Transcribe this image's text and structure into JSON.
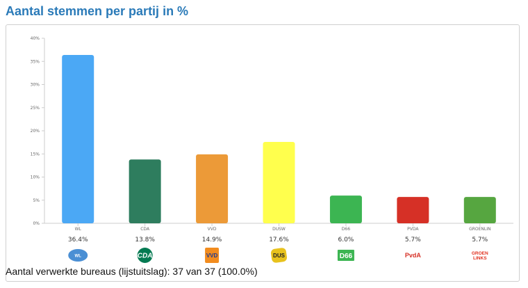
{
  "header": {
    "title": "Aantal stemmen per partij in %"
  },
  "footer": {
    "text": "Aantal verwerkte bureaus (lijstuitslag): 37 van 37 (100.0%)"
  },
  "chart_data": {
    "type": "bar",
    "title": "",
    "xlabel": "",
    "ylabel": "",
    "ylim": [
      0,
      40
    ],
    "yticks": [
      "0%",
      "5%",
      "10%",
      "15%",
      "20%",
      "25%",
      "30%",
      "35%",
      "40%"
    ],
    "grid": false,
    "categories": [
      "WL",
      "CDA",
      "VVD",
      "DUSW",
      "D66",
      "PVDA",
      "GROENLIN"
    ],
    "values": [
      36.4,
      13.8,
      14.9,
      17.6,
      6.0,
      5.7,
      5.7
    ],
    "value_labels": [
      "36.4%",
      "13.8%",
      "14.9%",
      "17.6%",
      "6.0%",
      "5.7%",
      "5.7%"
    ],
    "colors": [
      "#4ba8f5",
      "#2e7d5e",
      "#ec9a38",
      "#ffff4d",
      "#3cb552",
      "#d63026",
      "#56a640"
    ],
    "logos": [
      {
        "icon": "wl-logo",
        "text": "WL",
        "color": "#4a8fd4"
      },
      {
        "icon": "cda-logo",
        "text": "CDA",
        "color": "#047a52"
      },
      {
        "icon": "vvd-logo",
        "text": "VVD",
        "color": "#1f3a93"
      },
      {
        "icon": "dus-logo",
        "text": "DUS",
        "color": "#e8c21d"
      },
      {
        "icon": "d66-logo",
        "text": "D66",
        "color": "#3cb552"
      },
      {
        "icon": "pvda-logo",
        "text": "PvdA",
        "color": "#d63026"
      },
      {
        "icon": "groenlinks-logo",
        "text": "GROEN LINKS",
        "color": "#e0301e"
      }
    ]
  }
}
